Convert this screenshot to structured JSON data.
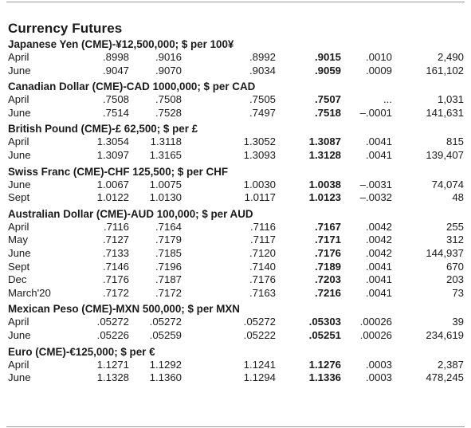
{
  "title": "Currency Futures",
  "sections": [
    {
      "heading": "Japanese Yen (CME)-¥12,500,000; $ per 100¥",
      "rows": [
        {
          "month": "April",
          "open": ".8998",
          "high": ".9016",
          "low": ".8992",
          "settle": ".9015",
          "chg": ".0010",
          "oi": "2,490"
        },
        {
          "month": "June",
          "open": ".9047",
          "high": ".9070",
          "low": ".9034",
          "settle": ".9059",
          "chg": ".0009",
          "oi": "161,102"
        }
      ]
    },
    {
      "heading": "Canadian Dollar (CME)-CAD 1000,000; $ per CAD",
      "rows": [
        {
          "month": "April",
          "open": ".7508",
          "high": ".7508",
          "low": ".7505",
          "settle": ".7507",
          "chg": "...",
          "oi": "1,031"
        },
        {
          "month": "June",
          "open": ".7514",
          "high": ".7528",
          "low": ".7497",
          "settle": ".7518",
          "chg": "–.0001",
          "oi": "141,631"
        }
      ]
    },
    {
      "heading": "British Pound (CME)-£ 62,500; $ per £",
      "rows": [
        {
          "month": "April",
          "open": "1.3054",
          "high": "1.3118",
          "low": "1.3052",
          "settle": "1.3087",
          "chg": ".0041",
          "oi": "815"
        },
        {
          "month": "June",
          "open": "1.3097",
          "high": "1.3165",
          "low": "1.3093",
          "settle": "1.3128",
          "chg": ".0041",
          "oi": "139,407"
        }
      ]
    },
    {
      "heading": "Swiss Franc (CME)-CHF 125,500; $ per CHF",
      "rows": [
        {
          "month": "June",
          "open": "1.0067",
          "high": "1.0075",
          "low": "1.0030",
          "settle": "1.0038",
          "chg": "–.0031",
          "oi": "74,074"
        },
        {
          "month": "Sept",
          "open": "1.0122",
          "high": "1.0130",
          "low": "1.0117",
          "settle": "1.0123",
          "chg": "–.0032",
          "oi": "48"
        }
      ]
    },
    {
      "heading": "Australian Dollar (CME)-AUD 100,000; $ per AUD",
      "rows": [
        {
          "month": "April",
          "open": ".7116",
          "high": ".7164",
          "low": ".7116",
          "settle": ".7167",
          "chg": ".0042",
          "oi": "255"
        },
        {
          "month": "May",
          "open": ".7127",
          "high": ".7179",
          "low": ".7117",
          "settle": ".7171",
          "chg": ".0042",
          "oi": "312"
        },
        {
          "month": "June",
          "open": ".7133",
          "high": ".7185",
          "low": ".7120",
          "settle": ".7176",
          "chg": ".0042",
          "oi": "144,937"
        },
        {
          "month": "Sept",
          "open": ".7146",
          "high": ".7196",
          "low": ".7140",
          "settle": ".7189",
          "chg": ".0041",
          "oi": "670"
        },
        {
          "month": "Dec",
          "open": ".7176",
          "high": ".7187",
          "low": ".7176",
          "settle": ".7203",
          "chg": ".0041",
          "oi": "203"
        },
        {
          "month": "March'20",
          "open": ".7172",
          "high": ".7172",
          "low": ".7163",
          "settle": ".7216",
          "chg": ".0041",
          "oi": "73"
        }
      ]
    },
    {
      "heading": "Mexican Peso (CME)-MXN 500,000; $ per MXN",
      "rows": [
        {
          "month": "April",
          "open": ".05272",
          "high": ".05272",
          "low": ".05272",
          "settle": ".05303",
          "chg": ".00026",
          "oi": "39"
        },
        {
          "month": "June",
          "open": ".05226",
          "high": ".05259",
          "low": ".05222",
          "settle": ".05251",
          "chg": ".00026",
          "oi": "234,619"
        }
      ]
    },
    {
      "heading": "Euro (CME)-€125,000; $ per €",
      "rows": [
        {
          "month": "April",
          "open": "1.1271",
          "high": "1.1292",
          "low": "1.1241",
          "settle": "1.1276",
          "chg": ".0003",
          "oi": "2,387"
        },
        {
          "month": "June",
          "open": "1.1328",
          "high": "1.1360",
          "low": "1.1294",
          "settle": "1.1336",
          "chg": ".0003",
          "oi": "478,245"
        }
      ]
    }
  ]
}
